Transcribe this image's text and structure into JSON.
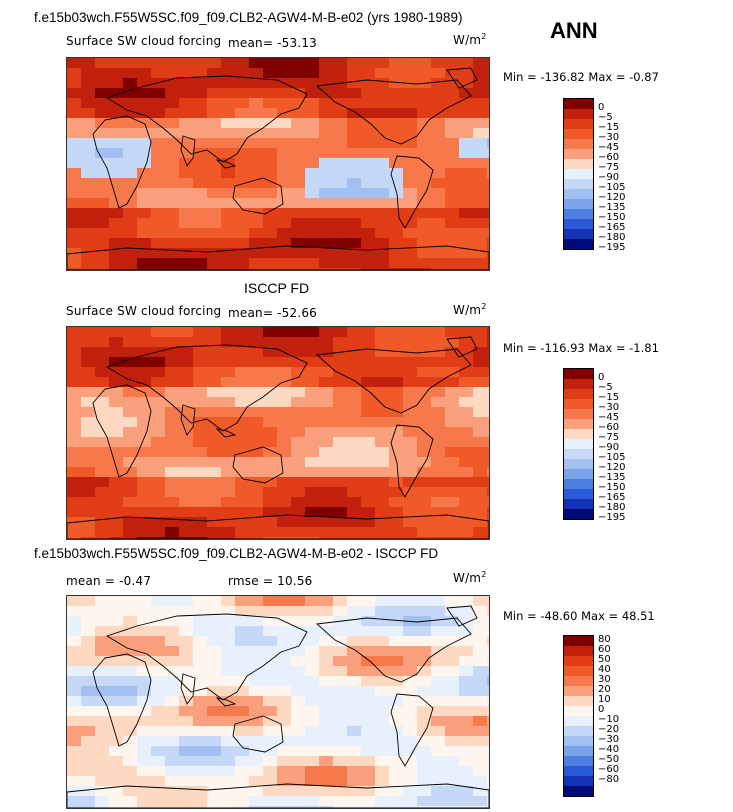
{
  "header": {
    "case_title": "f.e15b03wch.F55W5SC.f09_f09.CLB2-AGW4-M-B-e02 (yrs 1980-1989)",
    "season": "ANN"
  },
  "panel_labels": {
    "middle_title": "ISCCP FD",
    "bottom_title": "f.e15b03wch.F55W5SC.f09_f09.CLB2-AGW4-M-B-e02 - ISCCP FD"
  },
  "colors": {
    "model_obs_scale": [
      "#800000",
      "#c0200c",
      "#e03c16",
      "#f05a28",
      "#f7784a",
      "#faa07c",
      "#fdd9c2",
      "#e8f0fc",
      "#c6d8f7",
      "#a3c0f2",
      "#7aa3ec",
      "#4d7fe3",
      "#2a5ad8",
      "#1432b4",
      "#000a78"
    ],
    "diff_scale": [
      "#800000",
      "#c0200c",
      "#e03c16",
      "#f05a28",
      "#f7784a",
      "#faa07c",
      "#fdd9c2",
      "#fef5ef",
      "#e8f0fc",
      "#c6d8f7",
      "#a3c0f2",
      "#7aa3ec",
      "#4d7fe3",
      "#2a5ad8",
      "#1432b4",
      "#000a78"
    ]
  },
  "chart_data": [
    {
      "type": "heatmap",
      "title": "Surface SW cloud forcing",
      "stat_label": "mean=",
      "mean": "-53.13",
      "units": "W/m",
      "units_exp": "2",
      "min_label": "Min =",
      "min": "-136.82",
      "max_label": "Max =",
      "max": "-0.87",
      "levels": [
        "0",
        "-5",
        "-15",
        "-30",
        "-45",
        "-60",
        "-75",
        "-90",
        "-105",
        "-120",
        "-135",
        "-150",
        "-165",
        "-180",
        "-195"
      ],
      "field": "model"
    },
    {
      "type": "heatmap",
      "title": "Surface SW cloud forcing",
      "stat_label": "mean=",
      "mean": "-52.66",
      "units": "W/m",
      "units_exp": "2",
      "min_label": "Min =",
      "min": "-116.93",
      "max_label": "Max =",
      "max": "-1.81",
      "levels": [
        "0",
        "-5",
        "-15",
        "-30",
        "-45",
        "-60",
        "-75",
        "-90",
        "-105",
        "-120",
        "-135",
        "-150",
        "-165",
        "-180",
        "-195"
      ],
      "field": "obs"
    },
    {
      "type": "heatmap",
      "title": "",
      "mean_label": "mean =",
      "mean": "-0.47",
      "rmse_label": "rmse =",
      "rmse": "10.56",
      "units": "W/m",
      "units_exp": "2",
      "min_label": "Min =",
      "min": "-48.60",
      "max_label": "Max =",
      "max": "48.51",
      "levels": [
        "80",
        "60",
        "50",
        "40",
        "30",
        "20",
        "10",
        "0",
        "-10",
        "-20",
        "-30",
        "-40",
        "-50",
        "-60",
        "-80"
      ],
      "field": "diff"
    }
  ]
}
